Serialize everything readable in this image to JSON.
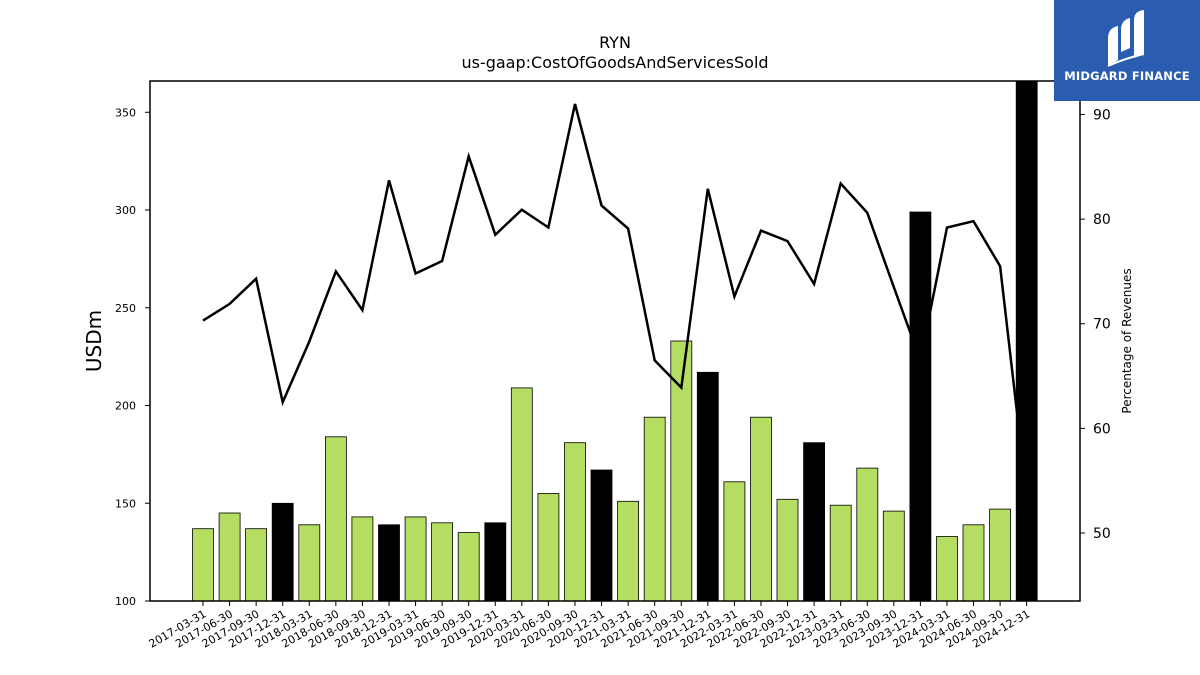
{
  "brand": {
    "name": "MIDGARD FINANCE",
    "icon": "midgard-logo-icon",
    "color": "#2a5db0"
  },
  "chart_data": {
    "type": "bar",
    "title": "RYN",
    "subtitle": "us-gaap:CostOfGoodsAndServicesSold",
    "ylabel": "USDm",
    "y2label": "Percentage of Revenues",
    "ylim": [
      100,
      366
    ],
    "y2lim": [
      43.5,
      93.2
    ],
    "yticks": [
      100,
      150,
      200,
      250,
      300,
      350
    ],
    "y2ticks": [
      50,
      60,
      70,
      80,
      90
    ],
    "categories": [
      "2017-03-31",
      "2017-06-30",
      "2017-09-30",
      "2017-12-31",
      "2018-03-31",
      "2018-06-30",
      "2018-09-30",
      "2018-12-31",
      "2019-03-31",
      "2019-06-30",
      "2019-09-30",
      "2019-12-31",
      "2020-03-31",
      "2020-06-30",
      "2020-09-30",
      "2020-12-31",
      "2021-03-31",
      "2021-06-30",
      "2021-09-30",
      "2021-12-31",
      "2022-03-31",
      "2022-06-30",
      "2022-09-30",
      "2022-12-31",
      "2023-03-31",
      "2023-06-30",
      "2023-09-30",
      "2023-12-31",
      "2024-03-31",
      "2024-06-30",
      "2024-09-30",
      "2024-12-31"
    ],
    "series": [
      {
        "kind": "bar",
        "axis": "left",
        "values": [
          137,
          145,
          137,
          150,
          139,
          184,
          143,
          139,
          143,
          140,
          135,
          140,
          209,
          155,
          181,
          167,
          151,
          194,
          233,
          217,
          161,
          194,
          152,
          181,
          149,
          168,
          146,
          299,
          133,
          139,
          147,
          366
        ],
        "quarter_end_flags": [
          false,
          false,
          false,
          true,
          false,
          false,
          false,
          true,
          false,
          false,
          false,
          true,
          false,
          false,
          false,
          true,
          false,
          false,
          false,
          true,
          false,
          false,
          false,
          true,
          false,
          false,
          false,
          true,
          false,
          false,
          false,
          true
        ],
        "color": "#b5dd62",
        "highlight_color": "#000000"
      },
      {
        "kind": "line",
        "axis": "right",
        "values": [
          70.3,
          71.9,
          74.3,
          62.5,
          68.3,
          75.0,
          71.3,
          83.7,
          74.8,
          76.0,
          86.0,
          78.5,
          80.9,
          79.2,
          91.0,
          81.3,
          79.1,
          66.5,
          63.9,
          82.9,
          72.6,
          78.9,
          77.9,
          73.8,
          83.4,
          80.6,
          73.5,
          66.5,
          79.2,
          79.8,
          75.5,
          53.5
        ],
        "color": "#000000"
      }
    ],
    "grid": false,
    "legend": "none"
  }
}
